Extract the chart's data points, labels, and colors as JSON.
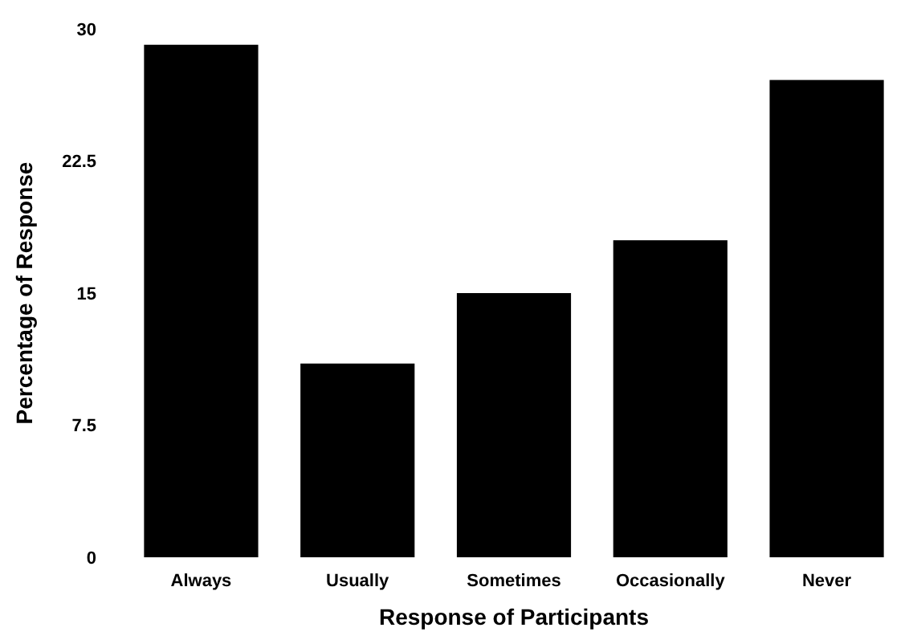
{
  "chart_data": {
    "type": "bar",
    "xlabel": "Response of Participants",
    "ylabel": "Percentage of Response",
    "categories": [
      "Always",
      "Usually",
      "Sometimes",
      "Occasionally",
      "Never"
    ],
    "values": [
      29.1,
      11,
      15,
      18,
      27.1
    ],
    "color": "#000000",
    "ylim": [
      0,
      30
    ],
    "yticks": [
      0,
      7.5,
      15,
      22.5,
      30
    ],
    "grid": false
  }
}
